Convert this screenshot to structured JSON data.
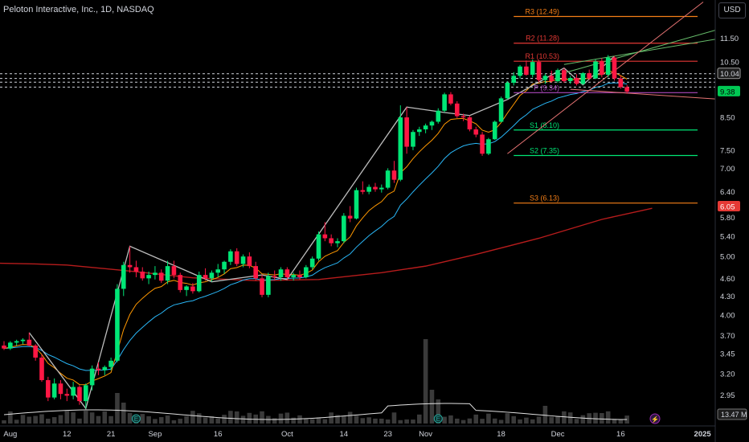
{
  "header": {
    "title": "Peloton Interactive, Inc., 1D, NASDAQ",
    "currency": "USD"
  },
  "chart_data": {
    "type": "candlestick",
    "title": "Peloton Interactive, Inc., 1D, NASDAQ",
    "price_axis": {
      "type": "log",
      "range": [
        2.62,
        13.3
      ],
      "ticks": [
        11.5,
        10.5,
        8.5,
        7.5,
        7.0,
        6.4,
        5.8,
        5.4,
        5.0,
        4.6,
        4.3,
        4.0,
        3.7,
        3.45,
        3.2,
        2.95,
        2.75
      ]
    },
    "time_axis": {
      "ticks": [
        {
          "label": "Aug",
          "i": 1
        },
        {
          "label": "12",
          "i": 10
        },
        {
          "label": "21",
          "i": 17
        },
        {
          "label": "Sep",
          "i": 24
        },
        {
          "label": "16",
          "i": 34
        },
        {
          "label": "Oct",
          "i": 45
        },
        {
          "label": "14",
          "i": 54
        },
        {
          "label": "23",
          "i": 61
        },
        {
          "label": "Nov",
          "i": 67
        },
        {
          "label": "18",
          "i": 79
        },
        {
          "label": "Dec",
          "i": 88
        },
        {
          "label": "16",
          "i": 98
        },
        {
          "label": "2025",
          "i": 111
        }
      ]
    },
    "candles": [
      [
        3.56,
        3.62,
        3.5,
        3.52
      ],
      [
        3.52,
        3.62,
        3.5,
        3.6
      ],
      [
        3.6,
        3.64,
        3.56,
        3.62
      ],
      [
        3.62,
        3.66,
        3.58,
        3.64
      ],
      [
        3.64,
        3.74,
        3.55,
        3.56
      ],
      [
        3.56,
        3.58,
        3.36,
        3.4
      ],
      [
        3.4,
        3.44,
        3.1,
        3.12
      ],
      [
        3.12,
        3.16,
        2.88,
        2.92
      ],
      [
        2.92,
        3.14,
        2.9,
        3.08
      ],
      [
        3.08,
        3.12,
        2.9,
        2.96
      ],
      [
        2.96,
        3.02,
        2.88,
        2.94
      ],
      [
        2.94,
        3.1,
        2.9,
        3.04
      ],
      [
        3.04,
        3.06,
        2.84,
        2.88
      ],
      [
        2.88,
        3.08,
        2.8,
        3.06
      ],
      [
        3.06,
        3.3,
        3.0,
        3.26
      ],
      [
        3.26,
        3.34,
        3.18,
        3.24
      ],
      [
        3.24,
        3.3,
        3.18,
        3.28
      ],
      [
        3.28,
        3.4,
        3.24,
        3.36
      ],
      [
        3.36,
        4.5,
        3.34,
        4.42
      ],
      [
        4.42,
        4.9,
        4.3,
        4.84
      ],
      [
        4.84,
        5.2,
        4.7,
        4.8
      ],
      [
        4.8,
        4.92,
        4.62,
        4.72
      ],
      [
        4.72,
        4.8,
        4.56,
        4.6
      ],
      [
        4.6,
        4.72,
        4.5,
        4.66
      ],
      [
        4.66,
        4.82,
        4.58,
        4.7
      ],
      [
        4.7,
        4.76,
        4.52,
        4.56
      ],
      [
        4.56,
        4.92,
        4.5,
        4.82
      ],
      [
        4.82,
        4.92,
        4.6,
        4.66
      ],
      [
        4.66,
        4.7,
        4.36,
        4.4
      ],
      [
        4.4,
        4.48,
        4.3,
        4.46
      ],
      [
        4.46,
        4.52,
        4.34,
        4.38
      ],
      [
        4.38,
        4.72,
        4.36,
        4.66
      ],
      [
        4.66,
        4.78,
        4.56,
        4.6
      ],
      [
        4.6,
        4.74,
        4.54,
        4.7
      ],
      [
        4.7,
        4.86,
        4.62,
        4.76
      ],
      [
        4.76,
        4.92,
        4.68,
        4.9
      ],
      [
        4.9,
        5.14,
        4.84,
        5.1
      ],
      [
        5.1,
        5.16,
        4.82,
        4.86
      ],
      [
        4.86,
        5.04,
        4.8,
        5.0
      ],
      [
        5.0,
        5.08,
        4.78,
        4.82
      ],
      [
        4.82,
        4.9,
        4.56,
        4.6
      ],
      [
        4.6,
        4.66,
        4.28,
        4.32
      ],
      [
        4.32,
        4.7,
        4.28,
        4.64
      ],
      [
        4.64,
        4.74,
        4.56,
        4.62
      ],
      [
        4.62,
        4.8,
        4.56,
        4.76
      ],
      [
        4.76,
        4.8,
        4.58,
        4.62
      ],
      [
        4.62,
        4.7,
        4.56,
        4.66
      ],
      [
        4.66,
        4.74,
        4.58,
        4.62
      ],
      [
        4.62,
        4.84,
        4.6,
        4.8
      ],
      [
        4.8,
        5.0,
        4.76,
        4.96
      ],
      [
        4.96,
        5.5,
        4.92,
        5.44
      ],
      [
        5.44,
        5.7,
        5.3,
        5.36
      ],
      [
        5.36,
        5.44,
        5.2,
        5.26
      ],
      [
        5.26,
        5.36,
        5.18,
        5.3
      ],
      [
        5.3,
        5.9,
        5.26,
        5.84
      ],
      [
        5.84,
        6.06,
        5.7,
        5.78
      ],
      [
        5.78,
        6.5,
        5.76,
        6.44
      ],
      [
        6.44,
        6.66,
        6.34,
        6.4
      ],
      [
        6.4,
        6.58,
        6.34,
        6.52
      ],
      [
        6.52,
        6.62,
        6.4,
        6.46
      ],
      [
        6.46,
        6.58,
        6.38,
        6.5
      ],
      [
        6.5,
        7.0,
        6.46,
        6.94
      ],
      [
        6.94,
        7.2,
        6.62,
        6.7
      ],
      [
        6.7,
        8.9,
        6.66,
        8.5
      ],
      [
        8.5,
        8.84,
        7.4,
        7.6
      ],
      [
        7.6,
        8.1,
        7.5,
        8.04
      ],
      [
        8.04,
        8.2,
        7.92,
        8.12
      ],
      [
        8.12,
        8.3,
        8.0,
        8.24
      ],
      [
        8.24,
        8.4,
        8.1,
        8.36
      ],
      [
        8.36,
        8.8,
        8.3,
        8.72
      ],
      [
        8.72,
        9.34,
        8.66,
        9.28
      ],
      [
        9.28,
        9.36,
        8.9,
        8.96
      ],
      [
        8.96,
        9.04,
        8.48,
        8.54
      ],
      [
        8.54,
        8.62,
        8.38,
        8.5
      ],
      [
        8.5,
        8.56,
        8.06,
        8.12
      ],
      [
        8.12,
        8.2,
        7.88,
        7.96
      ],
      [
        7.96,
        8.04,
        7.34,
        7.4
      ],
      [
        7.4,
        7.86,
        7.36,
        7.82
      ],
      [
        7.82,
        8.4,
        7.8,
        8.36
      ],
      [
        8.36,
        9.2,
        8.34,
        9.14
      ],
      [
        9.14,
        9.76,
        9.1,
        9.7
      ],
      [
        9.7,
        10.1,
        9.6,
        9.96
      ],
      [
        9.96,
        10.38,
        9.86,
        10.32
      ],
      [
        10.32,
        10.56,
        9.96,
        10.0
      ],
      [
        10.0,
        10.6,
        9.9,
        10.5
      ],
      [
        10.5,
        10.58,
        9.72,
        9.8
      ],
      [
        9.8,
        10.04,
        9.66,
        9.96
      ],
      [
        9.96,
        10.16,
        9.7,
        9.76
      ],
      [
        9.76,
        10.24,
        9.7,
        10.18
      ],
      [
        10.18,
        10.26,
        9.7,
        9.76
      ],
      [
        9.76,
        9.96,
        9.66,
        9.88
      ],
      [
        9.88,
        10.02,
        9.6,
        9.66
      ],
      [
        9.66,
        10.1,
        9.62,
        10.06
      ],
      [
        10.06,
        10.2,
        9.8,
        9.86
      ],
      [
        9.86,
        10.6,
        9.84,
        10.52
      ],
      [
        10.52,
        10.66,
        9.9,
        10.0
      ],
      [
        10.0,
        10.78,
        9.9,
        10.68
      ],
      [
        10.68,
        10.74,
        9.78,
        9.86
      ],
      [
        9.86,
        9.96,
        9.48,
        9.54
      ],
      [
        9.54,
        9.62,
        9.3,
        9.38
      ]
    ],
    "moving_average_200": [
      [
        -4,
        4.88
      ],
      [
        5,
        4.86
      ],
      [
        10,
        4.84
      ],
      [
        20,
        4.73
      ],
      [
        30,
        4.61
      ],
      [
        40,
        4.56
      ],
      [
        50,
        4.58
      ],
      [
        60,
        4.7
      ],
      [
        67,
        4.82
      ],
      [
        75,
        5.04
      ],
      [
        85,
        5.36
      ],
      [
        95,
        5.76
      ],
      [
        103,
        6.01
      ]
    ],
    "pivot_levels": [
      {
        "label": "R3 (12.49)",
        "value": 12.49,
        "color": "#f57f17"
      },
      {
        "label": "R2 (11.28)",
        "value": 11.28,
        "color": "#e53935"
      },
      {
        "label": "R1 (10.53)",
        "value": 10.53,
        "color": "#e53935"
      },
      {
        "label": "P (9.34)",
        "value": 9.34,
        "color": "#ab47bc"
      },
      {
        "label": "S1 (8.10)",
        "value": 8.1,
        "color": "#00e676"
      },
      {
        "label": "S2 (7.35)",
        "value": 7.35,
        "color": "#00e676"
      },
      {
        "label": "S3 (6.13)",
        "value": 6.13,
        "color": "#f57f17"
      }
    ],
    "price_labels": [
      {
        "text": "10.04",
        "value": 10.04,
        "bg": "#1e1e1e",
        "fg": "#d1d4dc"
      },
      {
        "text": "9.38",
        "value": 9.38,
        "bg": "#00c853",
        "fg": "#000000"
      },
      {
        "text": "6.05",
        "value": 6.05,
        "bg": "#e53935",
        "fg": "#ffffff"
      }
    ],
    "volume_label": "13.47 M",
    "colors": {
      "up": "#00e676",
      "down": "#ff1744",
      "ma200": "#b71c1c",
      "ema_fast": "#ff9800",
      "ema_slow": "#29b6f6",
      "zigzag": "#bdbdbd"
    }
  }
}
